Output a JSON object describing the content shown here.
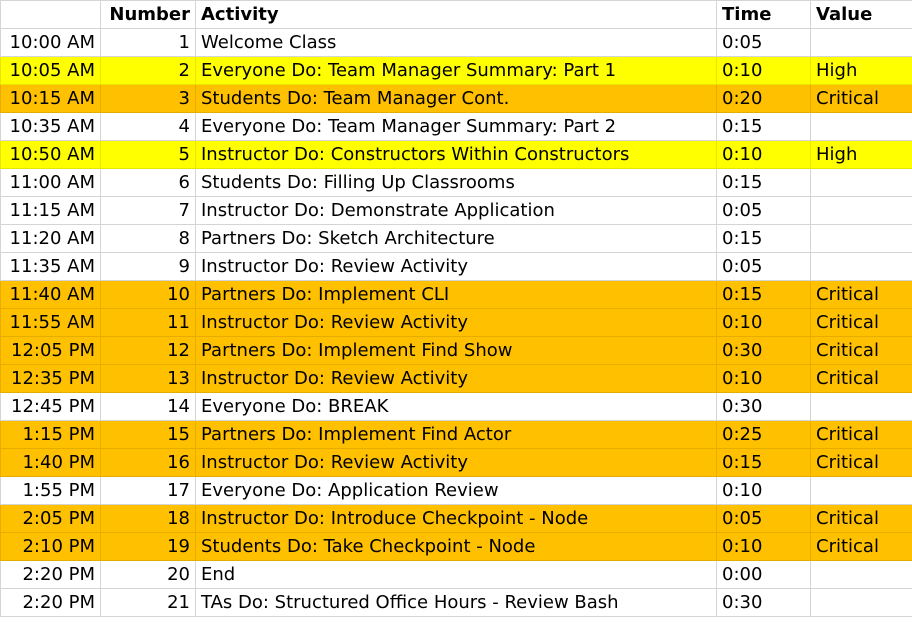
{
  "colors": {
    "high": "#ffff00",
    "critical": "#ffc000",
    "grid": "#d4d4d4"
  },
  "headers": {
    "time": "",
    "number": "Number",
    "activity": "Activity",
    "duration": "Time",
    "value": "Value"
  },
  "rows": [
    {
      "time": "10:00 AM",
      "number": "1",
      "activity": "Welcome Class",
      "duration": "0:05",
      "value": ""
    },
    {
      "time": "10:05 AM",
      "number": "2",
      "activity": "Everyone Do: Team Manager Summary: Part 1",
      "duration": "0:10",
      "value": "High"
    },
    {
      "time": "10:15 AM",
      "number": "3",
      "activity": "Students Do: Team Manager Cont.",
      "duration": "0:20",
      "value": "Critical"
    },
    {
      "time": "10:35 AM",
      "number": "4",
      "activity": "Everyone Do: Team Manager Summary: Part 2",
      "duration": "0:15",
      "value": ""
    },
    {
      "time": "10:50 AM",
      "number": "5",
      "activity": "Instructor Do: Constructors Within Constructors",
      "duration": "0:10",
      "value": "High"
    },
    {
      "time": "11:00 AM",
      "number": "6",
      "activity": "Students Do: Filling Up Classrooms",
      "duration": "0:15",
      "value": ""
    },
    {
      "time": "11:15 AM",
      "number": "7",
      "activity": "Instructor Do: Demonstrate Application",
      "duration": "0:05",
      "value": ""
    },
    {
      "time": "11:20 AM",
      "number": "8",
      "activity": "Partners Do: Sketch Architecture",
      "duration": "0:15",
      "value": ""
    },
    {
      "time": "11:35 AM",
      "number": "9",
      "activity": "Instructor Do: Review Activity",
      "duration": "0:05",
      "value": ""
    },
    {
      "time": "11:40 AM",
      "number": "10",
      "activity": "Partners Do: Implement CLI",
      "duration": "0:15",
      "value": "Critical"
    },
    {
      "time": "11:55 AM",
      "number": "11",
      "activity": "Instructor Do: Review Activity",
      "duration": "0:10",
      "value": "Critical"
    },
    {
      "time": "12:05 PM",
      "number": "12",
      "activity": "Partners Do: Implement Find Show",
      "duration": "0:30",
      "value": "Critical"
    },
    {
      "time": "12:35 PM",
      "number": "13",
      "activity": "Instructor Do: Review Activity",
      "duration": "0:10",
      "value": "Critical"
    },
    {
      "time": "12:45 PM",
      "number": "14",
      "activity": "Everyone Do: BREAK",
      "duration": "0:30",
      "value": ""
    },
    {
      "time": "1:15 PM",
      "number": "15",
      "activity": "Partners Do: Implement Find Actor",
      "duration": "0:25",
      "value": "Critical"
    },
    {
      "time": "1:40 PM",
      "number": "16",
      "activity": "Instructor Do: Review Activity",
      "duration": "0:15",
      "value": "Critical"
    },
    {
      "time": "1:55 PM",
      "number": "17",
      "activity": "Everyone Do: Application Review",
      "duration": "0:10",
      "value": ""
    },
    {
      "time": "2:05 PM",
      "number": "18",
      "activity": "Instructor Do: Introduce Checkpoint - Node",
      "duration": "0:05",
      "value": "Critical"
    },
    {
      "time": "2:10 PM",
      "number": "19",
      "activity": "Students Do: Take Checkpoint - Node",
      "duration": "0:10",
      "value": "Critical"
    },
    {
      "time": "2:20 PM",
      "number": "20",
      "activity": "End",
      "duration": "0:00",
      "value": ""
    },
    {
      "time": "2:20 PM",
      "number": "21",
      "activity": "TAs Do: Structured Office Hours - Review Bash",
      "duration": "0:30",
      "value": ""
    }
  ]
}
